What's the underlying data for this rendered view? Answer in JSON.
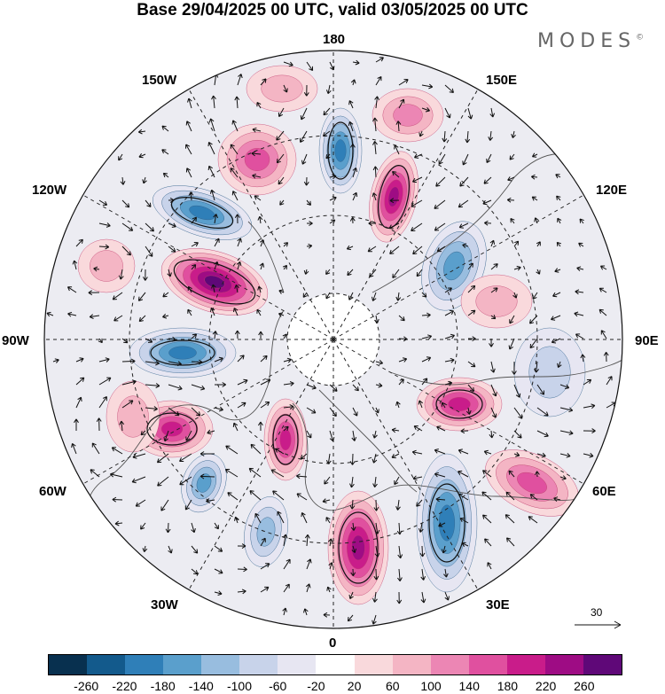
{
  "title": "Base 29/04/2025 00 UTC, valid 03/05/2025 00 UTC",
  "brand": {
    "name": "MODES",
    "mark": "©"
  },
  "longitude_labels": {
    "top": "180",
    "top_left": "150W",
    "top_right": "150E",
    "upper_left": "120W",
    "upper_right": "120E",
    "left": "90W",
    "right": "90E",
    "lower_left": "60W",
    "lower_right": "60E",
    "bottom_left": "30W",
    "bottom_right": "30E",
    "bottom": "0"
  },
  "reference_vector": {
    "label": "30"
  },
  "colorbar": {
    "colors": [
      "#08304f",
      "#135a8c",
      "#2f7fb8",
      "#5a9fcc",
      "#98bddf",
      "#c8d3ea",
      "#e7e6f2",
      "#ffffff",
      "#f9d9dc",
      "#f4b5c4",
      "#ec86b4",
      "#e0509f",
      "#c91c8a",
      "#9e0c84",
      "#5f0878"
    ],
    "tick_labels": [
      "-260",
      "-220",
      "-180",
      "-140",
      "-100",
      "-60",
      "-20",
      "20",
      "60",
      "100",
      "140",
      "180",
      "220",
      "260"
    ]
  }
}
